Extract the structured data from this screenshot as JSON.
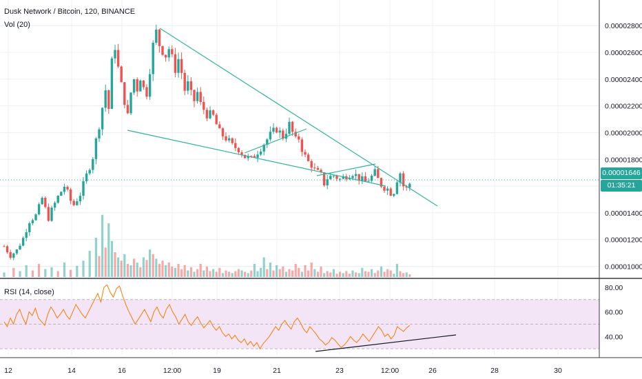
{
  "header": {
    "symbol_title": "Dusk Network / Bitcoin, 120, BINANCE",
    "volume_label": "Vol (20)",
    "rsi_label": "RSI (14, close)"
  },
  "price_tag": {
    "value": "0.00001646",
    "countdown": "01:35:21"
  },
  "colors": {
    "up": "#26a69a",
    "down": "#ef5350",
    "trendline": "#2fb39a",
    "rsi_line": "#f57c00",
    "rsi_band": "#f3e5f5",
    "grid": "#eceff1",
    "axis_text": "#131722",
    "price_tag_bg": "#26a69a",
    "rsi_trendline": "#131722"
  },
  "chart_data": [
    {
      "type": "candlestick",
      "title": "Dusk Network / Bitcoin, 120, BINANCE",
      "interval": "120",
      "y_ticks": [
        "0.00002800",
        "0.00002600",
        "0.00002400",
        "0.00002200",
        "0.00002000",
        "0.00001800",
        "0.00001600",
        "0.00001400",
        "0.00001200",
        "0.00001000"
      ],
      "ylim": [
        9.2e-06,
        2.93e-05
      ],
      "x_ticks": [
        "12",
        "14",
        "16",
        "12:00",
        "19",
        "21",
        "23",
        "12:00",
        "26",
        "28",
        "30"
      ],
      "last_price": 1.646e-05,
      "path": [
        [
          0,
          1.15e-05
        ],
        [
          2,
          1.08e-05
        ],
        [
          4,
          1.12e-05
        ],
        [
          6,
          1.21e-05
        ],
        [
          8,
          1.34e-05
        ],
        [
          10,
          1.38e-05
        ],
        [
          11,
          1.44e-05
        ],
        [
          12,
          1.51e-05
        ],
        [
          13,
          1.43e-05
        ],
        [
          14,
          1.36e-05
        ],
        [
          15,
          1.42e-05
        ],
        [
          17,
          1.52e-05
        ],
        [
          19,
          1.6e-05
        ],
        [
          20,
          1.55e-05
        ],
        [
          21,
          1.49e-05
        ],
        [
          22,
          1.46e-05
        ],
        [
          24,
          1.54e-05
        ],
        [
          26,
          1.68e-05
        ],
        [
          28,
          1.82e-05
        ],
        [
          30,
          2.06e-05
        ],
        [
          32,
          2.32e-05
        ],
        [
          33,
          2.18e-05
        ],
        [
          34,
          2.52e-05
        ],
        [
          35,
          2.65e-05
        ],
        [
          36,
          2.48e-05
        ],
        [
          37,
          2.35e-05
        ],
        [
          38,
          2.24e-05
        ],
        [
          39,
          2.12e-05
        ],
        [
          40,
          2.3e-05
        ],
        [
          41,
          2.4e-05
        ],
        [
          42,
          2.33e-05
        ],
        [
          43,
          2.42e-05
        ],
        [
          44,
          2.33e-05
        ],
        [
          45,
          2.3e-05
        ],
        [
          46,
          2.48e-05
        ],
        [
          47,
          2.65e-05
        ],
        [
          48,
          2.75e-05
        ],
        [
          49,
          2.66e-05
        ],
        [
          50,
          2.62e-05
        ],
        [
          51,
          2.58e-05
        ],
        [
          52,
          2.63e-05
        ],
        [
          53,
          2.55e-05
        ],
        [
          54,
          2.48e-05
        ],
        [
          55,
          2.55e-05
        ],
        [
          56,
          2.45e-05
        ],
        [
          57,
          2.32e-05
        ],
        [
          58,
          2.36e-05
        ],
        [
          59,
          2.28e-05
        ],
        [
          60,
          2.24e-05
        ],
        [
          61,
          2.3e-05
        ],
        [
          62,
          2.21e-05
        ],
        [
          64,
          2.14e-05
        ],
        [
          66,
          2.12e-05
        ],
        [
          68,
          2e-05
        ],
        [
          70,
          1.96e-05
        ],
        [
          72,
          1.9e-05
        ],
        [
          74,
          1.88e-05
        ],
        [
          76,
          1.82e-05
        ],
        [
          78,
          1.8e-05
        ],
        [
          80,
          1.86e-05
        ],
        [
          82,
          1.92e-05
        ],
        [
          84,
          1.98e-05
        ],
        [
          86,
          2.03e-05
        ],
        [
          88,
          1.97e-05
        ],
        [
          90,
          2.06e-05
        ],
        [
          91,
          2e-05
        ],
        [
          92,
          1.94e-05
        ],
        [
          93,
          1.96e-05
        ],
        [
          94,
          1.88e-05
        ],
        [
          95,
          1.82e-05
        ],
        [
          96,
          1.78e-05
        ],
        [
          97,
          1.76e-05
        ],
        [
          98,
          1.72e-05
        ],
        [
          100,
          1.68e-05
        ],
        [
          101,
          1.62e-05
        ],
        [
          102,
          1.66e-05
        ],
        [
          104,
          1.68e-05
        ],
        [
          106,
          1.65e-05
        ],
        [
          108,
          1.68e-05
        ],
        [
          110,
          1.7e-05
        ],
        [
          112,
          1.66e-05
        ],
        [
          114,
          1.63e-05
        ],
        [
          116,
          1.67e-05
        ],
        [
          117,
          1.7e-05
        ],
        [
          118,
          1.65e-05
        ],
        [
          119,
          1.61e-05
        ],
        [
          120,
          1.59e-05
        ],
        [
          121,
          1.58e-05
        ],
        [
          122,
          1.55e-05
        ],
        [
          123,
          1.56e-05
        ],
        [
          124,
          1.65e-05
        ],
        [
          125,
          1.7e-05
        ],
        [
          126,
          1.6e-05
        ],
        [
          127,
          1.58e-05
        ],
        [
          128,
          1.62e-05
        ]
      ],
      "vol_scale": 100,
      "vol_bars": [
        [
          0,
          7,
          1
        ],
        [
          3,
          14,
          0
        ],
        [
          5,
          9,
          1
        ],
        [
          7,
          18,
          1
        ],
        [
          9,
          10,
          0
        ],
        [
          11,
          20,
          0
        ],
        [
          13,
          12,
          1
        ],
        [
          15,
          15,
          1
        ],
        [
          17,
          9,
          0
        ],
        [
          19,
          22,
          1
        ],
        [
          21,
          11,
          0
        ],
        [
          23,
          17,
          1
        ],
        [
          25,
          25,
          1
        ],
        [
          27,
          40,
          1
        ],
        [
          29,
          60,
          1
        ],
        [
          30,
          32,
          0
        ],
        [
          31,
          95,
          1
        ],
        [
          32,
          45,
          0
        ],
        [
          33,
          82,
          1
        ],
        [
          34,
          55,
          1
        ],
        [
          35,
          38,
          0
        ],
        [
          36,
          30,
          1
        ],
        [
          37,
          25,
          0
        ],
        [
          38,
          35,
          1
        ],
        [
          39,
          20,
          0
        ],
        [
          40,
          18,
          1
        ],
        [
          41,
          28,
          0
        ],
        [
          42,
          22,
          1
        ],
        [
          43,
          15,
          0
        ],
        [
          44,
          30,
          1
        ],
        [
          45,
          26,
          0
        ],
        [
          46,
          42,
          1
        ],
        [
          47,
          35,
          0
        ],
        [
          48,
          28,
          1
        ],
        [
          49,
          20,
          0
        ],
        [
          50,
          25,
          0
        ],
        [
          51,
          18,
          1
        ],
        [
          52,
          22,
          0
        ],
        [
          53,
          16,
          0
        ],
        [
          54,
          14,
          1
        ],
        [
          55,
          20,
          0
        ],
        [
          56,
          12,
          0
        ],
        [
          57,
          18,
          0
        ],
        [
          58,
          10,
          1
        ],
        [
          59,
          15,
          0
        ],
        [
          60,
          8,
          1
        ],
        [
          61,
          12,
          0
        ],
        [
          62,
          20,
          0
        ],
        [
          63,
          10,
          1
        ],
        [
          64,
          16,
          0
        ],
        [
          65,
          9,
          0
        ],
        [
          66,
          12,
          1
        ],
        [
          67,
          8,
          0
        ],
        [
          68,
          14,
          0
        ],
        [
          69,
          6,
          1
        ],
        [
          70,
          10,
          0
        ],
        [
          71,
          8,
          0
        ],
        [
          72,
          6,
          1
        ],
        [
          73,
          9,
          0
        ],
        [
          74,
          12,
          0
        ],
        [
          75,
          10,
          1
        ],
        [
          76,
          8,
          0
        ],
        [
          77,
          6,
          1
        ],
        [
          78,
          10,
          0
        ],
        [
          79,
          20,
          1
        ],
        [
          80,
          9,
          1
        ],
        [
          81,
          14,
          1
        ],
        [
          82,
          30,
          1
        ],
        [
          83,
          12,
          0
        ],
        [
          84,
          22,
          1
        ],
        [
          85,
          10,
          0
        ],
        [
          86,
          18,
          1
        ],
        [
          87,
          12,
          0
        ],
        [
          88,
          16,
          0
        ],
        [
          89,
          8,
          1
        ],
        [
          90,
          12,
          0
        ],
        [
          91,
          10,
          0
        ],
        [
          92,
          20,
          0
        ],
        [
          93,
          14,
          0
        ],
        [
          94,
          8,
          1
        ],
        [
          95,
          18,
          0
        ],
        [
          96,
          10,
          0
        ],
        [
          97,
          22,
          0
        ],
        [
          98,
          12,
          1
        ],
        [
          99,
          8,
          0
        ],
        [
          100,
          16,
          0
        ],
        [
          101,
          6,
          1
        ],
        [
          102,
          9,
          0
        ],
        [
          103,
          7,
          0
        ],
        [
          104,
          12,
          1
        ],
        [
          105,
          5,
          0
        ],
        [
          106,
          8,
          0
        ],
        [
          107,
          6,
          1
        ],
        [
          108,
          9,
          0
        ],
        [
          109,
          5,
          0
        ],
        [
          110,
          10,
          1
        ],
        [
          111,
          7,
          0
        ],
        [
          112,
          6,
          1
        ],
        [
          113,
          14,
          1
        ],
        [
          114,
          9,
          0
        ],
        [
          115,
          8,
          0
        ],
        [
          116,
          12,
          1
        ],
        [
          117,
          6,
          0
        ],
        [
          118,
          10,
          0
        ],
        [
          119,
          16,
          1
        ],
        [
          120,
          8,
          0
        ],
        [
          121,
          12,
          0
        ],
        [
          122,
          10,
          0
        ],
        [
          123,
          5,
          1
        ],
        [
          124,
          20,
          1
        ],
        [
          125,
          9,
          0
        ],
        [
          126,
          6,
          0
        ],
        [
          127,
          7,
          1
        ],
        [
          128,
          4,
          0
        ]
      ]
    },
    {
      "type": "line",
      "title": "RSI (14, close)",
      "y_ticks": [
        "80.00",
        "60.00",
        "40.00"
      ],
      "ylim": [
        25,
        85
      ],
      "bands": [
        70,
        30
      ],
      "series": [
        {
          "values": [
            52,
            48,
            55,
            50,
            58,
            62,
            55,
            50,
            60,
            57,
            63,
            55,
            52,
            49,
            58,
            64,
            60,
            55,
            58,
            62,
            57,
            54,
            60,
            66,
            62,
            58,
            55,
            60,
            65,
            70,
            75,
            68,
            80,
            82,
            76,
            72,
            79,
            81,
            73,
            66,
            60,
            55,
            50,
            54,
            58,
            62,
            57,
            52,
            60,
            64,
            58,
            55,
            62,
            66,
            60,
            56,
            50,
            54,
            58,
            52,
            49,
            53,
            56,
            51,
            47,
            50,
            53,
            48,
            45,
            48,
            43,
            40,
            42,
            38,
            41,
            37,
            35,
            38,
            33,
            36,
            32,
            35,
            30,
            34,
            37,
            40,
            44,
            48,
            45,
            50,
            53,
            49,
            46,
            52,
            55,
            51,
            46,
            43,
            48,
            45,
            42,
            38,
            36,
            33,
            35,
            39,
            37,
            34,
            31,
            33,
            36,
            40,
            37,
            35,
            38,
            42,
            39,
            36,
            40,
            44,
            48,
            45,
            40,
            42,
            38,
            41,
            48,
            46,
            44,
            47,
            49
          ]
        }
      ]
    }
  ]
}
